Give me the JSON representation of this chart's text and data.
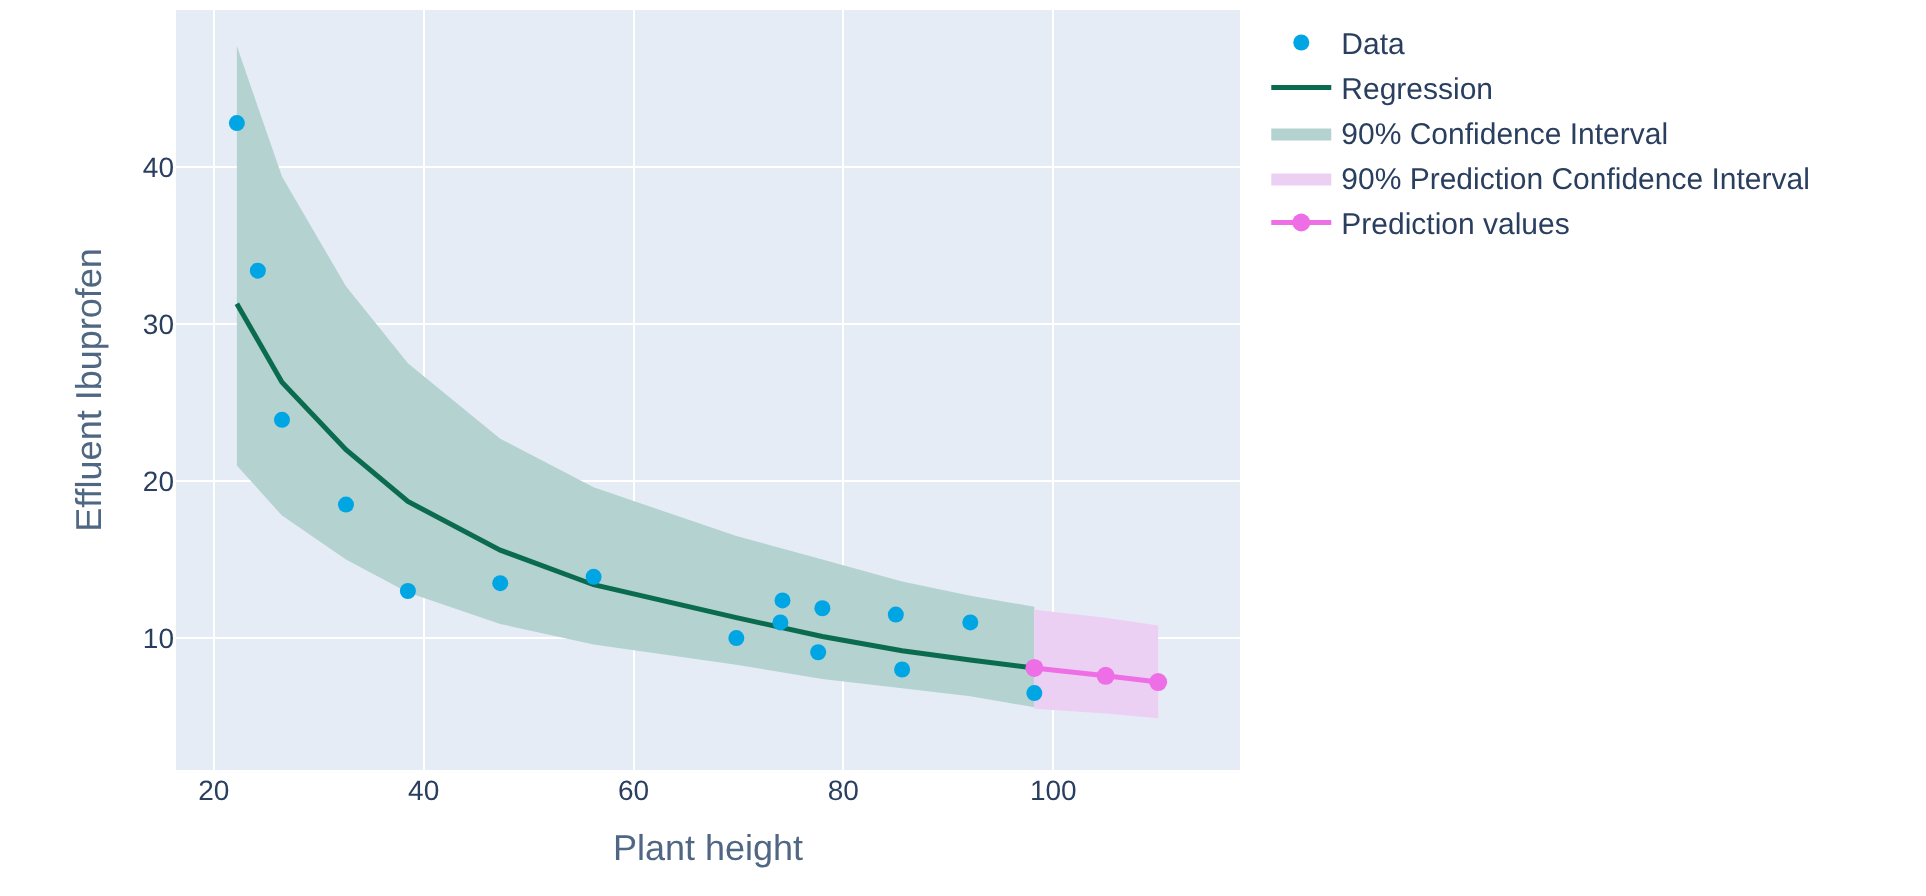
{
  "chart_data": {
    "type": "scatter",
    "xlabel": "Plant height",
    "ylabel": "Effluent Ibuprofen",
    "xlim": [
      16.4,
      117.8
    ],
    "xticks": [
      20,
      40,
      60,
      80,
      100
    ],
    "ylim": [
      1.6,
      50
    ],
    "yticks": [
      10,
      20,
      30,
      40
    ],
    "grid": true,
    "legend": "top right",
    "series": [
      {
        "name": "Data",
        "marker": "circle",
        "color": "#00a5e3",
        "x": [
          22.2,
          24.2,
          26.5,
          32.6,
          38.5,
          47.3,
          56.2,
          69.8,
          74,
          74.2,
          77.6,
          78,
          85,
          85.6,
          92.1,
          98.2
        ],
        "values": [
          42.8,
          33.4,
          23.9,
          18.5,
          13.0,
          13.5,
          13.9,
          10.0,
          11.0,
          12.4,
          9.1,
          11.9,
          11.5,
          8.0,
          11.0,
          6.5
        ]
      },
      {
        "name": "Regression",
        "type": "line",
        "marker": "none",
        "color": "#0b6b4f",
        "x": [
          22.2,
          26.5,
          32.6,
          38.5,
          47.3,
          56.2,
          69.8,
          78,
          85.6,
          92.1,
          98.2
        ],
        "values": [
          31.3,
          26.3,
          22.0,
          18.7,
          15.6,
          13.4,
          11.3,
          10.1,
          9.2,
          8.6,
          8.1
        ],
        "lower": [
          21.0,
          17.8,
          15.0,
          12.9,
          10.9,
          9.6,
          8.3,
          7.4,
          6.8,
          6.3,
          5.6
        ],
        "upper": [
          47.7,
          39.4,
          32.4,
          27.5,
          22.7,
          19.6,
          16.5,
          15.0,
          13.6,
          12.7,
          12.0
        ]
      },
      {
        "name": "90% Confidence Interval",
        "type": "area",
        "color": "#b4d2cf"
      },
      {
        "name": "90% Prediction Confidence Interval",
        "type": "area",
        "color": "#ecd0f4"
      },
      {
        "name": "Prediction values",
        "type": "line",
        "marker": "circle",
        "color": "#ee6ee6",
        "x": [
          98.2,
          105,
          110
        ],
        "values": [
          8.1,
          7.6,
          7.2
        ],
        "lower": [
          5.5,
          5.2,
          4.9
        ],
        "upper": [
          11.8,
          11.3,
          10.8
        ]
      }
    ]
  }
}
